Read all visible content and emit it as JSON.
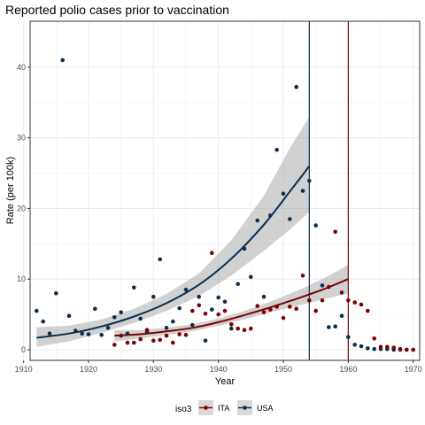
{
  "chart_data": {
    "type": "scatter",
    "title": "Reported polio cases prior to vaccination",
    "xlabel": "Year",
    "ylabel": "Rate (per 100k)",
    "xlim": [
      1911,
      1971
    ],
    "ylim": [
      -1.5,
      46.5
    ],
    "xticks": [
      1910,
      1920,
      1930,
      1940,
      1950,
      1960,
      1970
    ],
    "yticks": [
      0,
      10,
      20,
      30,
      40
    ],
    "grid": true,
    "legend": {
      "title": "iso3",
      "position": "bottom"
    },
    "series": [
      {
        "name": "ITA",
        "color": "#7f0000",
        "vaccine_year": 1960,
        "points": [
          [
            1924,
            0.7
          ],
          [
            1925,
            2.0
          ],
          [
            1926,
            1.0
          ],
          [
            1927,
            1.0
          ],
          [
            1928,
            1.5
          ],
          [
            1929,
            2.8
          ],
          [
            1930,
            1.3
          ],
          [
            1931,
            1.4
          ],
          [
            1932,
            2.0
          ],
          [
            1933,
            1.0
          ],
          [
            1934,
            2.2
          ],
          [
            1935,
            2.1
          ],
          [
            1936,
            5.5
          ],
          [
            1937,
            6.3
          ],
          [
            1938,
            5.1
          ],
          [
            1939,
            13.7
          ],
          [
            1940,
            5.0
          ],
          [
            1941,
            5.5
          ],
          [
            1942,
            3.6
          ],
          [
            1943,
            3.0
          ],
          [
            1944,
            2.8
          ],
          [
            1945,
            3.0
          ],
          [
            1946,
            6.2
          ],
          [
            1947,
            5.3
          ],
          [
            1948,
            5.7
          ],
          [
            1949,
            6.1
          ],
          [
            1950,
            4.5
          ],
          [
            1951,
            6.1
          ],
          [
            1952,
            5.8
          ],
          [
            1953,
            10.5
          ],
          [
            1954,
            7.0
          ],
          [
            1955,
            5.5
          ],
          [
            1956,
            7.0
          ],
          [
            1957,
            8.9
          ],
          [
            1958,
            16.7
          ],
          [
            1959,
            8.1
          ],
          [
            1960,
            7.0
          ],
          [
            1961,
            6.7
          ],
          [
            1962,
            6.4
          ],
          [
            1963,
            5.5
          ],
          [
            1964,
            1.6
          ],
          [
            1965,
            0.4
          ],
          [
            1966,
            0.4
          ],
          [
            1967,
            0.3
          ],
          [
            1968,
            0.1
          ],
          [
            1969,
            0.0
          ],
          [
            1970,
            0.0
          ]
        ],
        "fit": {
          "x": [
            1924,
            1928,
            1932,
            1936,
            1940,
            1944,
            1948,
            1952,
            1956,
            1960
          ],
          "y": [
            2.0,
            2.2,
            2.6,
            3.1,
            3.9,
            4.9,
            6.0,
            7.2,
            8.5,
            10.0
          ],
          "lower": [
            1.2,
            1.6,
            2.1,
            2.6,
            3.4,
            4.3,
            5.3,
            6.2,
            7.1,
            8.0
          ],
          "upper": [
            2.8,
            2.8,
            3.1,
            3.6,
            4.4,
            5.5,
            6.8,
            8.3,
            10.0,
            12.0
          ]
        }
      },
      {
        "name": "USA",
        "color": "#0b2f4e",
        "vaccine_year": 1954,
        "points": [
          [
            1912,
            5.5
          ],
          [
            1913,
            4.0
          ],
          [
            1914,
            2.3
          ],
          [
            1915,
            8.0
          ],
          [
            1916,
            41.0
          ],
          [
            1917,
            4.8
          ],
          [
            1918,
            2.7
          ],
          [
            1919,
            2.3
          ],
          [
            1920,
            2.2
          ],
          [
            1921,
            5.8
          ],
          [
            1922,
            2.1
          ],
          [
            1923,
            3.1
          ],
          [
            1924,
            4.6
          ],
          [
            1925,
            5.3
          ],
          [
            1926,
            2.3
          ],
          [
            1927,
            8.8
          ],
          [
            1928,
            4.4
          ],
          [
            1929,
            2.5
          ],
          [
            1930,
            7.5
          ],
          [
            1931,
            12.8
          ],
          [
            1932,
            3.1
          ],
          [
            1933,
            4.0
          ],
          [
            1934,
            5.9
          ],
          [
            1935,
            8.5
          ],
          [
            1936,
            3.5
          ],
          [
            1937,
            7.5
          ],
          [
            1938,
            1.3
          ],
          [
            1939,
            5.7
          ],
          [
            1940,
            7.4
          ],
          [
            1941,
            6.8
          ],
          [
            1942,
            3.0
          ],
          [
            1943,
            9.3
          ],
          [
            1944,
            14.3
          ],
          [
            1945,
            10.3
          ],
          [
            1946,
            18.3
          ],
          [
            1947,
            7.5
          ],
          [
            1948,
            19.0
          ],
          [
            1949,
            28.3
          ],
          [
            1950,
            22.1
          ],
          [
            1951,
            18.5
          ],
          [
            1952,
            37.2
          ],
          [
            1953,
            22.5
          ],
          [
            1954,
            23.9
          ],
          [
            1955,
            17.6
          ],
          [
            1956,
            9.1
          ],
          [
            1957,
            3.2
          ],
          [
            1958,
            3.3
          ],
          [
            1959,
            4.8
          ],
          [
            1960,
            1.8
          ],
          [
            1961,
            0.7
          ],
          [
            1962,
            0.5
          ],
          [
            1963,
            0.2
          ],
          [
            1964,
            0.1
          ],
          [
            1965,
            0.1
          ],
          [
            1966,
            0.1
          ],
          [
            1967,
            0.0
          ],
          [
            1968,
            0.0
          ],
          [
            1969,
            0.0
          ],
          [
            1970,
            0.0
          ]
        ],
        "fit": {
          "x": [
            1912,
            1917,
            1922,
            1927,
            1932,
            1937,
            1942,
            1947,
            1951,
            1954
          ],
          "y": [
            1.7,
            2.3,
            3.3,
            4.7,
            6.6,
            9.2,
            12.9,
            17.7,
            22.4,
            26.0
          ],
          "lower": [
            0.4,
            1.2,
            2.4,
            3.8,
            5.5,
            7.6,
            10.5,
            14.0,
            17.0,
            19.5
          ],
          "upper": [
            3.2,
            3.4,
            4.3,
            5.8,
            7.9,
            10.8,
            15.5,
            21.8,
            28.5,
            33.0
          ]
        }
      }
    ]
  }
}
